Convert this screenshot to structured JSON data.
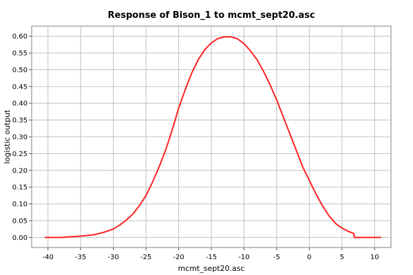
{
  "chart_data": {
    "type": "line",
    "title": "Response of Bison_1 to mcmt_sept20.asc",
    "xlabel": "mcmt_sept20.asc",
    "ylabel": "logistic output",
    "xlim": [
      -42.5,
      12.5
    ],
    "ylim": [
      -0.03,
      0.63
    ],
    "xticks": [
      -40,
      -35,
      -30,
      -25,
      -20,
      -15,
      -10,
      -5,
      0,
      5,
      10
    ],
    "xtick_labels": [
      "-40",
      "-35",
      "-30",
      "-25",
      "-20",
      "-15",
      "-10",
      "-5",
      "0",
      "5",
      "10"
    ],
    "yticks": [
      0.0,
      0.05,
      0.1,
      0.15,
      0.2,
      0.25,
      0.3,
      0.35,
      0.4,
      0.45,
      0.5,
      0.55,
      0.6
    ],
    "ytick_labels": [
      "0.00",
      "0.05",
      "0.10",
      "0.15",
      "0.20",
      "0.25",
      "0.30",
      "0.35",
      "0.40",
      "0.45",
      "0.50",
      "0.55",
      "0.60"
    ],
    "grid": true,
    "series": [
      {
        "color": "#ff2020",
        "x": [
          -40.5,
          -38.0,
          -36.5,
          -35.0,
          -33.0,
          -31.5,
          -30.0,
          -29.0,
          -28.0,
          -27.0,
          -26.0,
          -25.0,
          -24.0,
          -23.0,
          -22.0,
          -21.0,
          -20.0,
          -19.0,
          -18.0,
          -17.0,
          -16.0,
          -15.0,
          -14.0,
          -13.0,
          -12.0,
          -11.0,
          -10.0,
          -9.0,
          -8.0,
          -7.0,
          -6.0,
          -5.0,
          -4.0,
          -3.0,
          -2.0,
          -1.0,
          0.0,
          1.0,
          2.0,
          3.0,
          4.0,
          5.0,
          6.0,
          6.8,
          6.9,
          8.0,
          11.0
        ],
        "y": [
          0.0,
          0.0,
          0.002,
          0.004,
          0.008,
          0.015,
          0.025,
          0.037,
          0.052,
          0.07,
          0.095,
          0.125,
          0.165,
          0.21,
          0.26,
          0.32,
          0.385,
          0.44,
          0.49,
          0.53,
          0.56,
          0.58,
          0.593,
          0.598,
          0.598,
          0.592,
          0.578,
          0.556,
          0.53,
          0.495,
          0.455,
          0.41,
          0.36,
          0.31,
          0.26,
          0.21,
          0.17,
          0.13,
          0.095,
          0.065,
          0.042,
          0.028,
          0.018,
          0.012,
          0.0,
          0.0,
          0.0
        ]
      }
    ]
  }
}
